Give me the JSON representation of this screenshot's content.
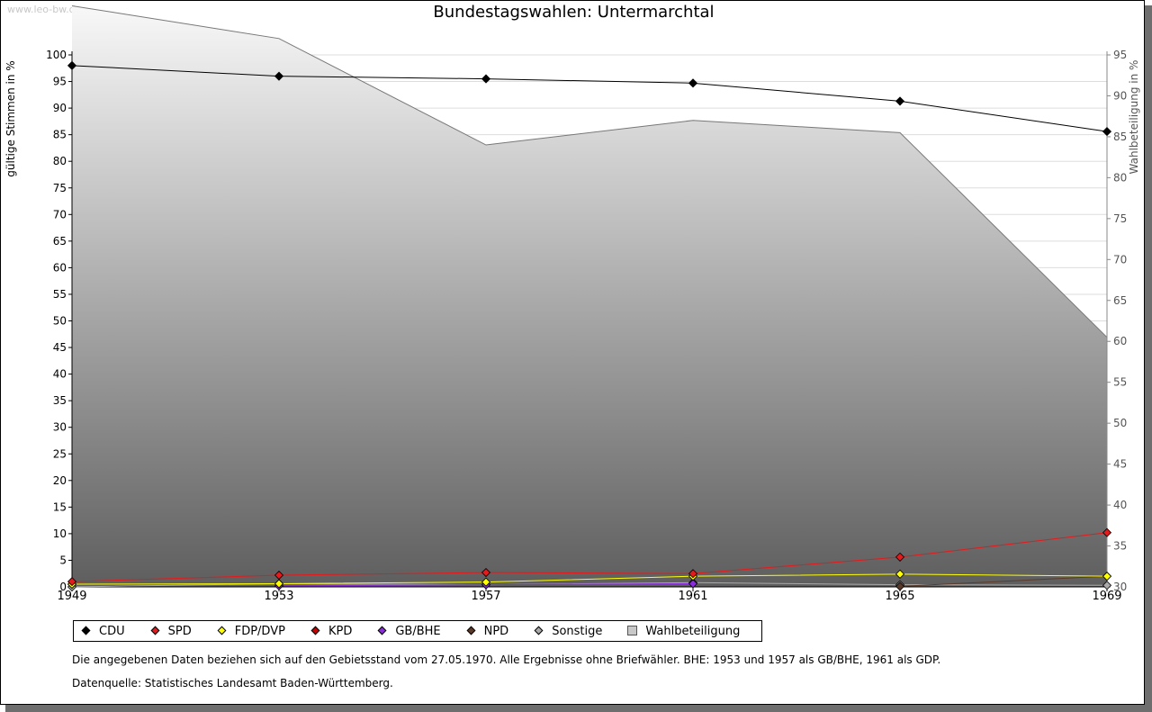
{
  "watermark": "www.leo-bw.de",
  "title": "Bundestagswahlen: Untermarchtal",
  "axes": {
    "left_label": "gültige Stimmen in %",
    "right_label": "Wahlbeteiligung in %"
  },
  "footnotes": {
    "note": "Die angegebenen Daten beziehen sich auf den Gebietsstand vom 27.05.1970. Alle Ergebnisse ohne Briefwähler. BHE: 1953 und 1957 als GB/BHE, 1961 als GDP.",
    "source": "Datenquelle: Statistisches Landesamt Baden-Württemberg."
  },
  "legend": [
    {
      "label": "CDU",
      "color": "#000000",
      "marker": "diamond"
    },
    {
      "label": "SPD",
      "color": "#e41a1c",
      "marker": "diamond"
    },
    {
      "label": "FDP/DVP",
      "color": "#ffff00",
      "marker": "diamond"
    },
    {
      "label": "KPD",
      "color": "#cc0000",
      "marker": "diamond"
    },
    {
      "label": "GB/BHE",
      "color": "#8a2be2",
      "marker": "diamond"
    },
    {
      "label": "NPD",
      "color": "#5a3a2a",
      "marker": "diamond"
    },
    {
      "label": "Sonstige",
      "color": "#aaaaaa",
      "marker": "diamond"
    },
    {
      "label": "Wahlbeteiligung",
      "color": "#c8c8c8",
      "marker": "square"
    }
  ],
  "chart_data": {
    "type": "line",
    "title": "Bundestagswahlen: Untermarchtal",
    "x": [
      1949,
      1953,
      1957,
      1961,
      1965,
      1969
    ],
    "ylabel": "gültige Stimmen in %",
    "ylim": [
      0,
      100
    ],
    "yticks": [
      0,
      5,
      10,
      15,
      20,
      25,
      30,
      35,
      40,
      45,
      50,
      55,
      60,
      65,
      70,
      75,
      80,
      85,
      90,
      95,
      100
    ],
    "y2label": "Wahlbeteiligung in %",
    "y2lim": [
      30,
      95
    ],
    "y2ticks": [
      30,
      35,
      40,
      45,
      50,
      55,
      60,
      65,
      70,
      75,
      80,
      85,
      90,
      95
    ],
    "grid": true,
    "legend_position": "bottom",
    "series": [
      {
        "name": "CDU",
        "color": "#000000",
        "axis": "left",
        "values": [
          98.0,
          96.0,
          95.5,
          94.7,
          91.3,
          85.6
        ]
      },
      {
        "name": "SPD",
        "color": "#e41a1c",
        "axis": "left",
        "values": [
          1.0,
          2.2,
          2.7,
          2.5,
          5.6,
          10.2
        ]
      },
      {
        "name": "FDP/DVP",
        "color": "#ffff00",
        "axis": "left",
        "values": [
          0.5,
          0.6,
          0.9,
          2.0,
          2.4,
          2.0
        ]
      },
      {
        "name": "KPD",
        "color": "#cc0000",
        "axis": "left",
        "values": [
          0.5,
          null,
          null,
          null,
          null,
          null
        ]
      },
      {
        "name": "GB/BHE",
        "color": "#8a2be2",
        "axis": "left",
        "values": [
          null,
          0.2,
          0.4,
          0.6,
          null,
          null
        ]
      },
      {
        "name": "NPD",
        "color": "#5a3a2a",
        "axis": "left",
        "values": [
          null,
          null,
          null,
          null,
          0.1,
          2.0
        ]
      },
      {
        "name": "Sonstige",
        "color": "#aaaaaa",
        "axis": "left",
        "values": [
          0.0,
          0.6,
          0.4,
          0.8,
          0.4,
          0.3
        ]
      },
      {
        "name": "Wahlbeteiligung",
        "color": "#c8c8c8",
        "axis": "right",
        "kind": "area",
        "values": [
          101.0,
          97.0,
          84.0,
          87.0,
          85.5,
          60.5
        ]
      }
    ]
  }
}
